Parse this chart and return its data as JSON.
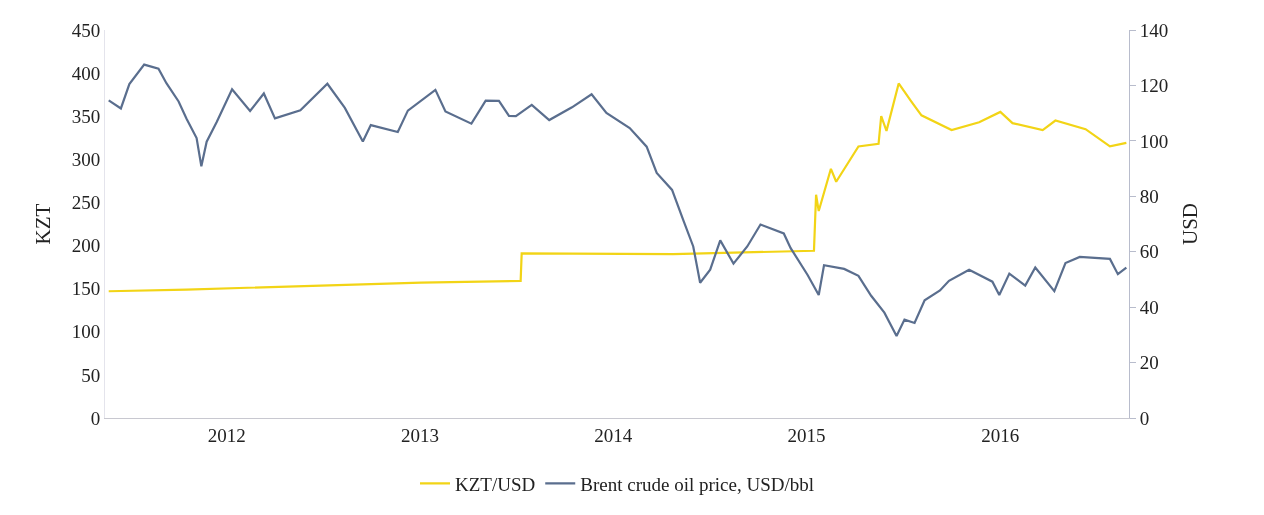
{
  "chart_data": {
    "type": "line",
    "ylabel": "KZT",
    "y2label": "USD",
    "xlim": [
      "2011-12-15",
      "2017-04-01"
    ],
    "xticks": [
      {
        "value": "2012-08-01",
        "label": "2012"
      },
      {
        "value": "2013-08-01",
        "label": "2013"
      },
      {
        "value": "2014-08-01",
        "label": "2014"
      },
      {
        "value": "2015-08-01",
        "label": "2015"
      },
      {
        "value": "2016-08-01",
        "label": "2016"
      }
    ],
    "ylim": [
      0,
      450
    ],
    "yticks": [
      0,
      50,
      100,
      150,
      200,
      250,
      300,
      350,
      400,
      450
    ],
    "y2lim": [
      0,
      140
    ],
    "y2ticks": [
      0,
      20,
      40,
      60,
      80,
      100,
      120,
      140
    ],
    "grid": false,
    "legend": "bottom",
    "marker": "none",
    "line_style": "solid",
    "series": [
      {
        "name": "KZT/USD",
        "color": "#f2d416",
        "axis": "y",
        "x": [
          "2011-12-22",
          "2012-05-17",
          "2013-08-03",
          "2014-02-07",
          "2014-02-09",
          "2014-11-22",
          "2015-08-15",
          "2015-08-19",
          "2015-08-24",
          "2015-09-16",
          "2015-09-26",
          "2015-11-07",
          "2015-12-15",
          "2015-12-20",
          "2015-12-30",
          "2016-01-22",
          "2016-02-15",
          "2016-03-05",
          "2016-05-01",
          "2016-06-22",
          "2016-08-01",
          "2016-08-24",
          "2016-10-20",
          "2016-11-13",
          "2017-01-09",
          "2017-02-24",
          "2017-03-27"
        ],
        "values": [
          147,
          149,
          157,
          159,
          191,
          190,
          194,
          259,
          240,
          289,
          274,
          315,
          318,
          350,
          333,
          388,
          367,
          351,
          334,
          343,
          355,
          342,
          334,
          345,
          335,
          315,
          319
        ]
      },
      {
        "name": "Brent crude oil price, USD/bbl",
        "color": "#5a6e8e",
        "axis": "y2",
        "x": [
          "2011-12-22",
          "2012-01-14",
          "2012-01-30",
          "2012-02-27",
          "2012-03-25",
          "2012-04-09",
          "2012-05-02",
          "2012-05-17",
          "2012-06-05",
          "2012-06-14",
          "2012-06-24",
          "2012-07-13",
          "2012-08-11",
          "2012-09-14",
          "2012-10-10",
          "2012-10-31",
          "2012-12-18",
          "2013-02-07",
          "2013-03-12",
          "2013-04-15",
          "2013-04-30",
          "2013-06-20",
          "2013-07-09",
          "2013-08-30",
          "2013-09-18",
          "2013-11-06",
          "2013-12-03",
          "2013-12-28",
          "2014-01-16",
          "2014-01-29",
          "2014-02-28",
          "2014-04-02",
          "2014-05-15",
          "2014-06-21",
          "2014-07-19",
          "2014-09-01",
          "2014-10-03",
          "2014-10-22",
          "2014-11-20",
          "2014-12-11",
          "2014-12-30",
          "2015-01-12",
          "2015-01-31",
          "2015-02-19",
          "2015-03-16",
          "2015-04-11",
          "2015-05-06",
          "2015-06-19",
          "2015-07-02",
          "2015-08-03",
          "2015-08-24",
          "2015-09-03",
          "2015-10-11",
          "2015-11-07",
          "2015-12-01",
          "2015-12-26",
          "2016-01-18",
          "2016-02-02",
          "2016-02-21",
          "2016-03-11",
          "2016-04-09",
          "2016-04-26",
          "2016-06-03",
          "2016-07-17",
          "2016-07-30",
          "2016-08-18",
          "2016-09-17",
          "2016-10-06",
          "2016-11-11",
          "2016-12-02",
          "2016-12-29",
          "2017-02-24",
          "2017-03-11",
          "2017-03-27"
        ],
        "values": [
          114.6,
          111.7,
          120.5,
          127.5,
          126,
          120.8,
          114.2,
          108,
          101,
          90.8,
          99.7,
          106.8,
          118.6,
          110.8,
          117.1,
          108.1,
          111,
          120.6,
          111.9,
          99.8,
          105.7,
          103.2,
          110.9,
          118.4,
          110.6,
          106.2,
          114.5,
          114.4,
          109,
          108.9,
          113,
          107.5,
          112.1,
          116.8,
          110.1,
          104.6,
          97.9,
          88.4,
          82.3,
          71.5,
          61.9,
          48.8,
          53.5,
          64.1,
          55.7,
          61.9,
          69.8,
          66.6,
          61.3,
          51.6,
          44.4,
          55.1,
          53.8,
          51.3,
          44.1,
          38,
          29.6,
          35.5,
          34.3,
          42.5,
          46,
          49.5,
          53.5,
          49.2,
          44.4,
          52.1,
          47.8,
          54.3,
          45.8,
          55.9,
          58.1,
          57.4,
          51.9,
          54.3
        ]
      }
    ]
  }
}
